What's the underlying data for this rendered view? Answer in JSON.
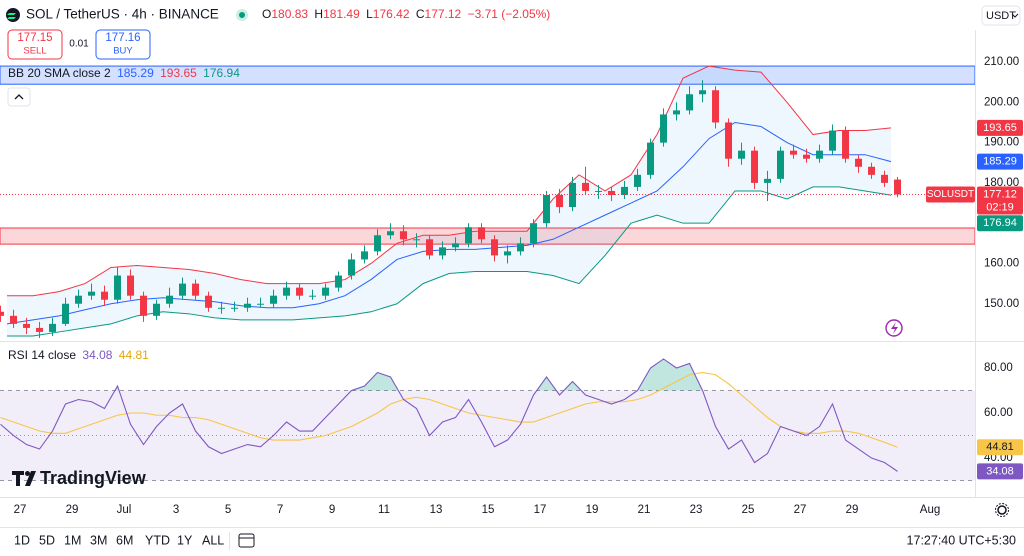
{
  "header": {
    "title": "SOL / TetherUS · 4h · BINANCE",
    "o_label": "O",
    "h_label": "H",
    "l_label": "L",
    "c_label": "C",
    "change": "−3.71 (−2.05%)",
    "currency": "USDT"
  },
  "trade": {
    "sell_price": "177.15",
    "sell": "SELL",
    "quantity": "0.01",
    "buy_price": "177.16",
    "buy": "BUY"
  },
  "logo": "TradingView",
  "toolbar": {
    "ranges": [
      "1D",
      "5D",
      "1M",
      "3M",
      "6M",
      "YTD",
      "1Y",
      "ALL"
    ],
    "clock": "17:27:40 UTC+5:30"
  },
  "chart_data": [
    {
      "type": "candlestick",
      "x": [
        0.25,
        0.75,
        1.25,
        1.75,
        2.25,
        2.75,
        3.25,
        3.75,
        4.25,
        4.75,
        5.25,
        5.75,
        6.25,
        6.75,
        7.25,
        7.75,
        8.25,
        8.75,
        9.25,
        9.75,
        10.25,
        10.75,
        11.25,
        11.75,
        12.25,
        12.75,
        13.25,
        13.75,
        14.25,
        14.75,
        15.25,
        15.75,
        16.25,
        16.75,
        17.25,
        17.75,
        18.25,
        18.75,
        19.25,
        19.75,
        20.25,
        20.75,
        21.25,
        21.75,
        22.25,
        22.75,
        23.25,
        23.75,
        24.25,
        24.75,
        25.25,
        25.75,
        26.25,
        26.75,
        27.25,
        27.75,
        28.25,
        28.75,
        29.25,
        29.75,
        30.25,
        30.75,
        31.25,
        31.75,
        32.25,
        32.75,
        33.25,
        33.75,
        34.25,
        34.75
      ],
      "open": [
        148,
        147,
        145,
        144,
        143,
        145,
        150,
        152,
        153,
        151,
        157,
        152,
        147,
        150,
        152,
        155,
        152,
        149,
        149,
        149,
        150,
        150,
        152,
        154,
        152,
        152,
        154,
        157,
        161,
        163,
        167,
        168,
        166,
        166,
        162,
        164,
        165,
        169,
        166,
        162,
        163,
        165,
        170,
        177,
        174,
        180,
        178,
        178,
        177,
        179,
        182,
        190,
        197,
        198,
        202,
        203,
        195,
        186,
        188,
        180,
        181,
        188,
        187,
        186,
        188,
        193,
        186,
        184,
        182,
        180.83
      ],
      "high": [
        149.5,
        148.5,
        146.5,
        145.5,
        146.5,
        151.5,
        153.5,
        155,
        154.5,
        159,
        158.5,
        153,
        151,
        154,
        156.5,
        156,
        153,
        150.5,
        150.5,
        151.5,
        151.5,
        153.5,
        155.5,
        155,
        153.5,
        155,
        158,
        162.5,
        164.5,
        168.5,
        170,
        169.5,
        167.5,
        167,
        165.5,
        166.5,
        170,
        170,
        167,
        164.5,
        166.5,
        171,
        178,
        178.5,
        181.5,
        184,
        179.5,
        179,
        180.5,
        183.5,
        191,
        198.5,
        200,
        204,
        205.5,
        204,
        196,
        190,
        189,
        183,
        189,
        189.5,
        188.5,
        189.5,
        194.5,
        194,
        187,
        185,
        183,
        181.49
      ],
      "low": [
        145.5,
        144,
        142.5,
        141.5,
        142,
        144.5,
        149,
        151,
        149.5,
        150,
        151,
        145.5,
        146,
        149,
        151,
        151,
        148,
        147.5,
        148,
        148,
        149,
        149,
        151,
        151,
        151,
        151,
        153,
        156,
        160,
        162,
        166,
        164.5,
        164,
        161,
        161,
        163,
        164,
        165,
        160.5,
        160,
        162,
        164,
        169,
        172.5,
        173,
        177,
        176,
        175.5,
        176,
        178,
        181,
        189,
        195.5,
        197,
        200,
        193.5,
        184,
        184.5,
        178.5,
        175.5,
        180,
        186,
        185,
        185,
        187,
        185,
        182.5,
        181,
        179,
        176.42
      ],
      "close": [
        147,
        145,
        144,
        143,
        145,
        150,
        152,
        153,
        151,
        157,
        152,
        147,
        150,
        152,
        155,
        152,
        149,
        149,
        149,
        150,
        150,
        152,
        154,
        152,
        152,
        154,
        157,
        161,
        163,
        167,
        168,
        166,
        166,
        162,
        164,
        165,
        169,
        166,
        162,
        163,
        165,
        170,
        177,
        174,
        180,
        178,
        178,
        177,
        179,
        182,
        190,
        197,
        198,
        202,
        203,
        195,
        186,
        188,
        180,
        181,
        188,
        187,
        186,
        188,
        193,
        186,
        184,
        182,
        180,
        177.12
      ],
      "up_color": "#089981",
      "down_color": "#f23645",
      "xlim": [
        0.23,
        37.73
      ],
      "xticks": [
        {
          "value": 1,
          "label": "27"
        },
        {
          "value": 3,
          "label": "29"
        },
        {
          "value": 5,
          "label": "Jul"
        },
        {
          "value": 7,
          "label": "3"
        },
        {
          "value": 9,
          "label": "5"
        },
        {
          "value": 11,
          "label": "7"
        },
        {
          "value": 13,
          "label": "9"
        },
        {
          "value": 15,
          "label": "11"
        },
        {
          "value": 17,
          "label": "13"
        },
        {
          "value": 19,
          "label": "15"
        },
        {
          "value": 21,
          "label": "17"
        },
        {
          "value": 23,
          "label": "19"
        },
        {
          "value": 25,
          "label": "21"
        },
        {
          "value": 27,
          "label": "23"
        },
        {
          "value": 29,
          "label": "25"
        },
        {
          "value": 31,
          "label": "27"
        },
        {
          "value": 33,
          "label": "29"
        },
        {
          "value": 36,
          "label": "Aug"
        }
      ],
      "ylim": [
        141,
        211.5
      ],
      "yticks": [
        {
          "value": 210,
          "label": "210.00"
        },
        {
          "value": 200,
          "label": "200.00"
        },
        {
          "value": 190,
          "label": "190.00"
        },
        {
          "value": 180,
          "label": "180.00"
        },
        {
          "value": 160,
          "label": "160.00"
        },
        {
          "value": 150,
          "label": "150.00"
        }
      ],
      "indicator": {
        "title": "BB 20 SMA close 2",
        "x": [
          0.5,
          1.5,
          2.5,
          3.5,
          4.5,
          5.5,
          6.5,
          7.5,
          8.5,
          9.5,
          10.5,
          11.5,
          12.5,
          13.5,
          14.5,
          15.5,
          16.5,
          17.5,
          18.5,
          19.5,
          20.5,
          21.5,
          22.5,
          23.5,
          24.5,
          25.5,
          26.5,
          27.5,
          28.5,
          29.5,
          30.5,
          31.5,
          32.5,
          33.5,
          34.5
        ],
        "series": [
          {
            "color": "#2962ff",
            "values": [
              145,
              146,
              147,
              148.5,
              150,
              151,
              151.5,
              151,
              150.5,
              149.5,
              149,
              149,
              150,
              152,
              156,
              161,
              163,
              163.5,
              163.5,
              164,
              164.5,
              166,
              169,
              172,
              175,
              178,
              184,
              191,
              195,
              194,
              190,
              187,
              187,
              187,
              185.29
            ]
          },
          {
            "color": "#f23645",
            "values": [
              152,
              152,
              153,
              155,
              159,
              159.5,
              159,
              158.5,
              157.5,
              156,
              155,
              155,
              155,
              156,
              160,
              165,
              167,
              167,
              168,
              168,
              168,
              176,
              182,
              178,
              182,
              192,
              206,
              209,
              208,
              207.5,
              200,
              192,
              193,
              193,
              193.65
            ]
          },
          {
            "color": "#089981",
            "values": [
              142,
              142,
              143,
              144,
              145,
              147,
              148,
              147.5,
              146.5,
              146,
              146,
              146,
              146.5,
              147,
              148,
              150,
              155,
              157.5,
              158,
              158,
              158,
              157,
              155,
              162,
              170,
              172,
              170,
              170,
              178,
              178,
              176,
              179,
              179,
              178,
              176.94
            ]
          }
        ]
      },
      "zones": [
        {
          "from": 204.5,
          "to": 209,
          "color": "#2962ff"
        },
        {
          "from": 164.8,
          "to": 168.8,
          "color": "#f23645"
        }
      ],
      "symbol_label": "SOLUSDT",
      "countdown": "02:19"
    },
    {
      "type": "line",
      "title": "RSI 14 close",
      "series": [
        {
          "color": "#7e57c2",
          "values": [
            55,
            50,
            46,
            44,
            52,
            64,
            66,
            65,
            62,
            72,
            55,
            46,
            54,
            60,
            64,
            52,
            45,
            42,
            44,
            46,
            45,
            50,
            56,
            52,
            52,
            58,
            64,
            70,
            72,
            78,
            76,
            66,
            62,
            50,
            56,
            58,
            66,
            56,
            45,
            48,
            55,
            68,
            76,
            68,
            74,
            68,
            66,
            64,
            66,
            70,
            80,
            84,
            80,
            82,
            70,
            54,
            44,
            48,
            38,
            42,
            54,
            52,
            50,
            54,
            64,
            48,
            44,
            40,
            38,
            34.08
          ]
        },
        {
          "color": "#f7c548",
          "values": [
            58,
            56,
            54,
            52,
            51,
            51,
            53,
            55,
            57,
            59,
            60,
            60,
            59,
            59,
            58,
            58,
            57,
            55,
            53,
            51,
            49,
            48,
            48,
            48,
            49,
            50,
            52,
            54,
            57,
            60,
            64,
            66,
            67,
            66,
            64,
            62,
            60,
            59,
            58,
            57,
            56,
            56,
            58,
            60,
            62,
            64,
            65,
            65,
            65,
            66,
            68,
            71,
            74,
            77,
            78,
            77,
            73,
            68,
            63,
            58,
            54,
            52,
            51,
            51,
            52,
            52,
            51,
            49,
            47,
            44.81
          ]
        }
      ],
      "ylim": [
        25.8,
        91.1
      ],
      "yticks": [
        {
          "value": 80,
          "label": "80.00"
        },
        {
          "value": 60,
          "label": "60.00"
        },
        {
          "value": 40,
          "label": "40.00"
        }
      ],
      "levels": [
        70,
        50,
        30
      ]
    }
  ]
}
